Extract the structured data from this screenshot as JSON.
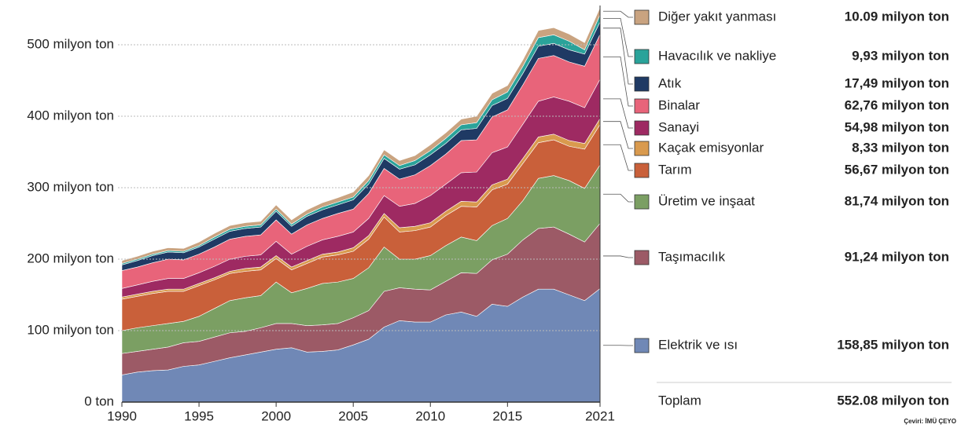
{
  "chart_data": {
    "type": "stacked_area",
    "x": [
      1990,
      1991,
      1992,
      1993,
      1994,
      1995,
      1996,
      1997,
      1998,
      1999,
      2000,
      2001,
      2002,
      2003,
      2004,
      2005,
      2006,
      2007,
      2008,
      2009,
      2010,
      2011,
      2012,
      2013,
      2014,
      2015,
      2016,
      2017,
      2018,
      2019,
      2020,
      2021
    ],
    "xlim": [
      1990,
      2021
    ],
    "xticks": [
      1990,
      1995,
      2000,
      2005,
      2010,
      2015,
      2021
    ],
    "ylim": [
      0,
      555
    ],
    "yticks": [
      {
        "value": 0,
        "label": "0 ton"
      },
      {
        "value": 100,
        "label": "100 milyon ton"
      },
      {
        "value": 200,
        "label": "200 milyon ton"
      },
      {
        "value": 300,
        "label": "300 milyon ton"
      },
      {
        "value": 400,
        "label": "400 milyon ton"
      },
      {
        "value": 500,
        "label": "500 milyon ton"
      }
    ],
    "grid": true,
    "series": [
      {
        "name": "Elektrik ve ısı",
        "color": "#7088b6",
        "value_label": "158,85 milyon ton",
        "values": [
          38,
          42,
          44,
          45,
          50,
          52,
          57,
          62,
          66,
          70,
          74,
          76,
          70,
          71,
          73,
          80,
          88,
          105,
          114,
          112,
          112,
          122,
          126,
          120,
          137,
          134,
          147,
          158,
          158,
          150,
          142,
          158.85
        ]
      },
      {
        "name": "Taşımacılık",
        "color": "#9c5a66",
        "value_label": "91,24 milyon ton",
        "values": [
          30,
          29,
          30,
          32,
          33,
          33,
          34,
          35,
          33,
          34,
          36,
          34,
          37,
          37,
          37,
          38,
          40,
          50,
          46,
          46,
          45,
          47,
          55,
          60,
          62,
          73,
          80,
          85,
          87,
          85,
          82,
          91.24
        ]
      },
      {
        "name": "Üretim ve inşaat",
        "color": "#7b9f63",
        "value_label": "81,74 milyon ton",
        "values": [
          32,
          33,
          33,
          33,
          30,
          35,
          40,
          45,
          47,
          45,
          58,
          43,
          52,
          58,
          58,
          55,
          60,
          62,
          40,
          42,
          48,
          50,
          50,
          46,
          48,
          50,
          55,
          70,
          72,
          75,
          75,
          81.74
        ]
      },
      {
        "name": "Tarım",
        "color": "#c9603a",
        "value_label": "56,67 milyon ton",
        "values": [
          44,
          44,
          45,
          45,
          42,
          43,
          40,
          38,
          37,
          36,
          33,
          32,
          35,
          37,
          38,
          38,
          40,
          42,
          38,
          40,
          40,
          42,
          43,
          47,
          50,
          48,
          52,
          50,
          50,
          48,
          55,
          56.67
        ]
      },
      {
        "name": "Kaçak emisyonlar",
        "color": "#d99a4e",
        "value_label": "8,33 milyon ton",
        "values": [
          3,
          3,
          3,
          3,
          3,
          3,
          3,
          3,
          4,
          4,
          4,
          4,
          4,
          4,
          4,
          5,
          5,
          5,
          6,
          6,
          6,
          6,
          7,
          7,
          7,
          7,
          7,
          8,
          8,
          8,
          8,
          8.33
        ]
      },
      {
        "name": "Sanayi",
        "color": "#9e2a62",
        "value_label": "54,98 milyon ton",
        "values": [
          12,
          13,
          14,
          15,
          15,
          15,
          16,
          17,
          17,
          17,
          20,
          18,
          20,
          20,
          22,
          22,
          24,
          25,
          30,
          32,
          38,
          38,
          40,
          42,
          45,
          45,
          48,
          50,
          52,
          55,
          50,
          54.98
        ]
      },
      {
        "name": "Binalar",
        "color": "#e8647a",
        "value_label": "62,76 milyon ton",
        "values": [
          25,
          25,
          26,
          27,
          26,
          26,
          27,
          28,
          28,
          28,
          30,
          28,
          30,
          30,
          32,
          32,
          35,
          38,
          38,
          40,
          42,
          42,
          45,
          45,
          50,
          52,
          55,
          60,
          58,
          55,
          58,
          62.76
        ]
      },
      {
        "name": "Atık",
        "color": "#1f3a64",
        "value_label": "17,49 milyon ton",
        "values": [
          8,
          9,
          10,
          10,
          10,
          10,
          11,
          11,
          11,
          11,
          12,
          11,
          12,
          12,
          12,
          13,
          13,
          14,
          14,
          14,
          15,
          15,
          15,
          16,
          16,
          16,
          16,
          17,
          17,
          17,
          17,
          17.49
        ]
      },
      {
        "name": "Havacılık ve nakliye",
        "color": "#2aa39a",
        "value_label": "9,93 milyon ton",
        "values": [
          2,
          2,
          2,
          2,
          2,
          2,
          3,
          3,
          3,
          3,
          3,
          3,
          3,
          4,
          4,
          4,
          5,
          5,
          5,
          6,
          6,
          7,
          7,
          8,
          8,
          9,
          10,
          12,
          12,
          12,
          6,
          9.93
        ]
      },
      {
        "name": "Diğer yakıt yanması",
        "color": "#c9a380",
        "value_label": "10.09 milyon ton",
        "values": [
          4,
          4,
          4,
          4,
          4,
          5,
          5,
          5,
          5,
          5,
          6,
          6,
          6,
          6,
          6,
          7,
          7,
          7,
          7,
          7,
          8,
          8,
          8,
          9,
          9,
          9,
          9,
          10,
          10,
          10,
          10,
          10.09
        ]
      }
    ],
    "total": {
      "label": "Toplam",
      "value": 552.08,
      "value_label": "552.08 milyon ton"
    },
    "credit": "Çeviri: İMÜ ÇEYO"
  }
}
